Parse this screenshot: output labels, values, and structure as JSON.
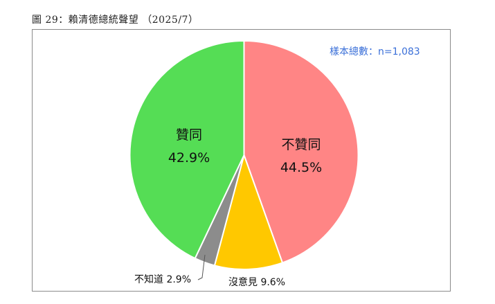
{
  "figure": {
    "title": "圖 29：賴清德總統聲望 （2025/7）"
  },
  "sample_note": "樣本總數：n=1,083",
  "labels": {
    "oppose_name": "不贊同",
    "oppose_pct": "44.5%",
    "approve_name": "贊同",
    "approve_pct": "42.9%",
    "no_opinion": "沒意見 9.6%",
    "dont_know": "不知道 2.9%"
  },
  "chart_data": {
    "type": "pie",
    "title": "賴清德總統聲望 （2025/7）",
    "subtitle": "樣本總數：n=1,083",
    "start_angle": "12 o'clock, clockwise",
    "slices": [
      {
        "label": "不贊同",
        "value": 44.5,
        "color": "#FF8585"
      },
      {
        "label": "沒意見",
        "value": 9.6,
        "color": "#FFC800"
      },
      {
        "label": "不知道",
        "value": 2.9,
        "color": "#8C8C8C"
      },
      {
        "label": "贊同",
        "value": 42.9,
        "color": "#55DD55"
      }
    ],
    "legend": "none (data labels on/near slices)"
  }
}
